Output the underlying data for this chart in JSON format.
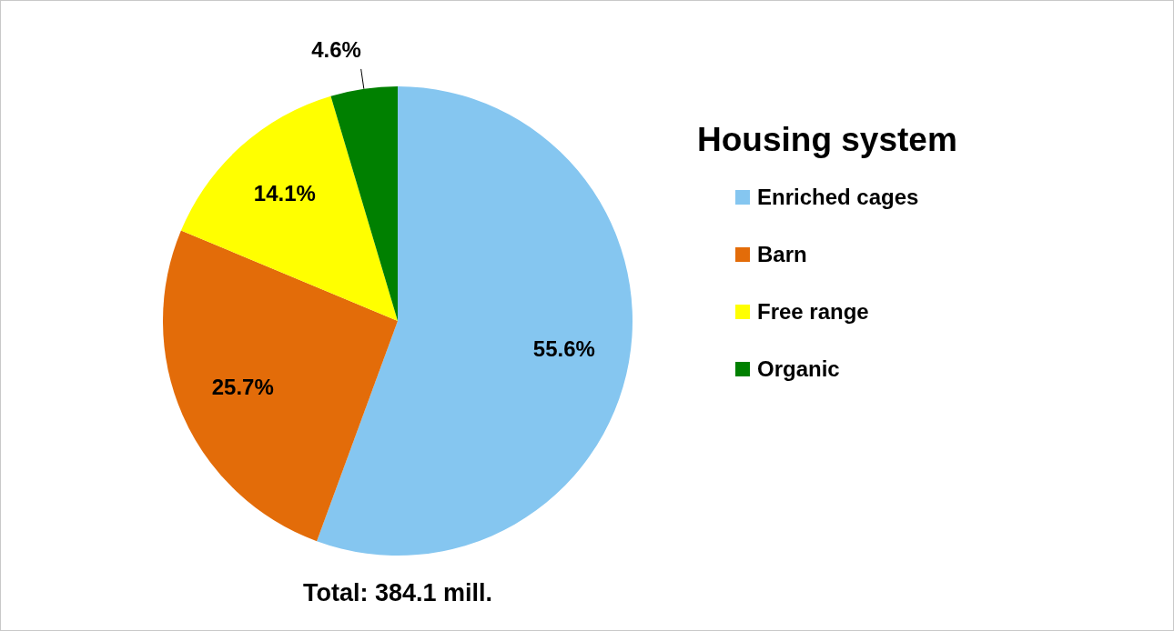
{
  "chart_data": {
    "type": "pie",
    "categories": [
      "Enriched cages",
      "Barn",
      "Free range",
      "Organic"
    ],
    "values": [
      55.6,
      25.7,
      14.1,
      4.6
    ],
    "value_labels": [
      "55.6%",
      "25.7%",
      "14.1%",
      "4.6%"
    ],
    "colors": [
      "#85c6f0",
      "#e36c09",
      "#ffff00",
      "#008000"
    ],
    "legend": "right",
    "legend_title": "Housing system",
    "annotations": [
      "Total: 384.1 mill."
    ]
  }
}
